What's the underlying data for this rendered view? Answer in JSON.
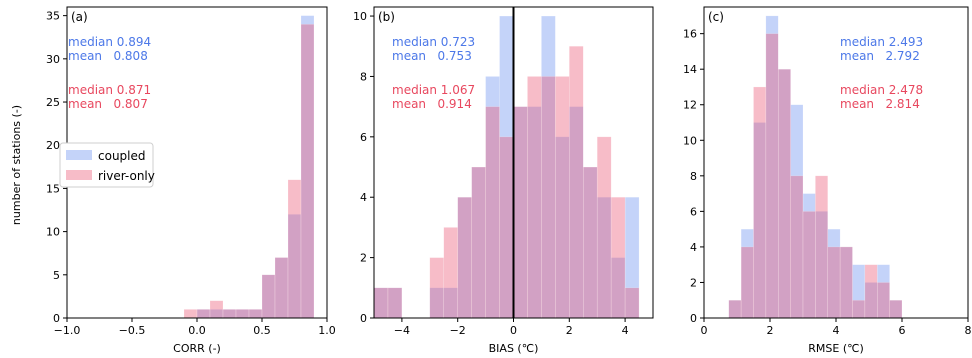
{
  "colors": {
    "coupled": "#4c78e8",
    "river_only": "#e8485f",
    "coupled_fill": "rgba(100,140,240,0.38)",
    "river_fill": "rgba(234,80,110,0.38)"
  },
  "legend": {
    "placement": "center-left of panel (a)",
    "items": [
      {
        "label": "coupled",
        "key": "coupled"
      },
      {
        "label": "river-only",
        "key": "river_only"
      }
    ]
  },
  "chart_data": [
    {
      "type": "bar",
      "panel_label": "(a)",
      "xlabel": "CORR (-)",
      "ylabel": "number of stations (-)",
      "xlim": [
        -1.0,
        1.0
      ],
      "ylim": [
        0,
        36
      ],
      "xticks": [
        -1.0,
        -0.5,
        0.0,
        0.5,
        1.0
      ],
      "xtick_labels": [
        "−1.0",
        "−0.5",
        "0.0",
        "0.5",
        "1.0"
      ],
      "yticks": [
        0,
        5,
        10,
        15,
        20,
        25,
        30,
        35
      ],
      "bin_edges": [
        -0.1,
        0.0,
        0.1,
        0.2,
        0.3,
        0.4,
        0.5,
        0.6,
        0.7,
        0.8,
        0.9,
        1.0
      ],
      "series": [
        {
          "name": "coupled",
          "key": "coupled",
          "values": [
            0,
            1,
            1,
            1,
            1,
            1,
            5,
            7,
            12,
            35
          ]
        },
        {
          "name": "river-only",
          "key": "river_only",
          "values": [
            1,
            1,
            2,
            1,
            1,
            1,
            5,
            7,
            16,
            34
          ]
        }
      ],
      "annotations": {
        "coupled": [
          "median 0.894",
          "mean   0.808"
        ],
        "river_only": [
          "median 0.871",
          "mean   0.807"
        ]
      }
    },
    {
      "type": "bar",
      "panel_label": "(b)",
      "xlabel": "BIAS (℃)",
      "ylabel": "",
      "xlim": [
        -5,
        5
      ],
      "ylim": [
        0,
        10.3
      ],
      "xticks": [
        -4,
        -2,
        0,
        2,
        4
      ],
      "xtick_labels": [
        "−4",
        "−2",
        "0",
        "2",
        "4"
      ],
      "yticks": [
        0,
        2,
        4,
        6,
        8,
        10
      ],
      "vline": 0,
      "bin_edges": [
        -5,
        -4.5,
        -4,
        -3.5,
        -3,
        -2.5,
        -2,
        -1.5,
        -1,
        -0.5,
        0,
        0.5,
        1,
        1.5,
        2,
        2.5,
        3,
        3.5,
        4,
        4.5
      ],
      "series": [
        {
          "name": "coupled",
          "key": "coupled",
          "values": [
            1,
            1,
            0,
            0,
            1,
            1,
            4,
            5,
            8,
            10,
            7,
            7,
            10,
            6,
            7,
            5,
            4,
            2,
            4
          ]
        },
        {
          "name": "river-only",
          "key": "river_only",
          "values": [
            1,
            1,
            0,
            0,
            2,
            3,
            4,
            5,
            7,
            6,
            7,
            8,
            8,
            8,
            9,
            5,
            6,
            4,
            1
          ]
        }
      ],
      "annotations": {
        "coupled": [
          "median 0.723",
          "mean   0.753"
        ],
        "river_only": [
          "median 1.067",
          "mean   0.914"
        ]
      }
    },
    {
      "type": "bar",
      "panel_label": "(c)",
      "xlabel": "RMSE (℃)",
      "ylabel": "",
      "xlim": [
        0,
        8
      ],
      "ylim": [
        0,
        17.5
      ],
      "xticks": [
        0,
        2,
        4,
        6,
        8
      ],
      "xtick_labels": [
        "0",
        "2",
        "4",
        "6",
        "8"
      ],
      "yticks": [
        0,
        2,
        4,
        6,
        8,
        10,
        12,
        14,
        16
      ],
      "bin_edges": [
        0.75,
        1.125,
        1.5,
        1.875,
        2.25,
        2.625,
        3.0,
        3.375,
        3.75,
        4.125,
        4.5,
        4.875,
        5.25,
        5.625,
        6.0
      ],
      "series": [
        {
          "name": "coupled",
          "key": "coupled",
          "values": [
            1,
            5,
            11,
            17,
            14,
            12,
            7,
            6,
            5,
            4,
            3,
            2,
            3,
            1
          ]
        },
        {
          "name": "river-only",
          "key": "river_only",
          "values": [
            1,
            4,
            13,
            16,
            14,
            8,
            6,
            8,
            4,
            4,
            1,
            3,
            2,
            1
          ]
        }
      ],
      "annotations": {
        "coupled": [
          "median 2.493",
          "mean   2.792"
        ],
        "river_only": [
          "median 2.478",
          "mean   2.814"
        ]
      }
    }
  ]
}
